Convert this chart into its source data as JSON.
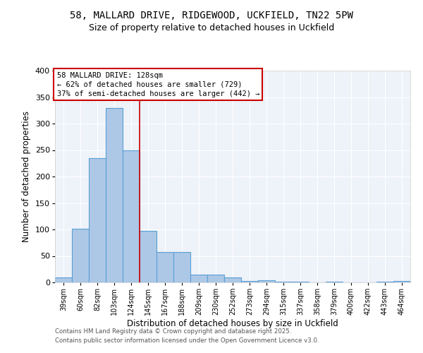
{
  "title1": "58, MALLARD DRIVE, RIDGEWOOD, UCKFIELD, TN22 5PW",
  "title2": "Size of property relative to detached houses in Uckfield",
  "xlabel": "Distribution of detached houses by size in Uckfield",
  "ylabel": "Number of detached properties",
  "categories": [
    "39sqm",
    "60sqm",
    "82sqm",
    "103sqm",
    "124sqm",
    "145sqm",
    "167sqm",
    "188sqm",
    "209sqm",
    "230sqm",
    "252sqm",
    "273sqm",
    "294sqm",
    "315sqm",
    "337sqm",
    "358sqm",
    "379sqm",
    "400sqm",
    "422sqm",
    "443sqm",
    "464sqm"
  ],
  "values": [
    10,
    102,
    235,
    330,
    250,
    97,
    57,
    57,
    15,
    15,
    10,
    3,
    4,
    2,
    1,
    0,
    1,
    0,
    0,
    1,
    3
  ],
  "bar_color": "#adc8e6",
  "bar_edgecolor": "#5a9fd4",
  "bar_linewidth": 0.8,
  "vline_x": 4.5,
  "vline_color": "#cc0000",
  "annotation_box_text": "58 MALLARD DRIVE: 128sqm\n← 62% of detached houses are smaller (729)\n37% of semi-detached houses are larger (442) →",
  "box_edgecolor": "#cc0000",
  "ylim": [
    0,
    400
  ],
  "yticks": [
    0,
    50,
    100,
    150,
    200,
    250,
    300,
    350,
    400
  ],
  "background_color": "#eef2f9",
  "footnote1": "Contains HM Land Registry data © Crown copyright and database right 2025.",
  "footnote2": "Contains public sector information licensed under the Open Government Licence v3.0.",
  "title_fontsize": 10,
  "subtitle_fontsize": 9,
  "tick_fontsize": 7,
  "label_fontsize": 8.5,
  "annot_fontsize": 7.5
}
